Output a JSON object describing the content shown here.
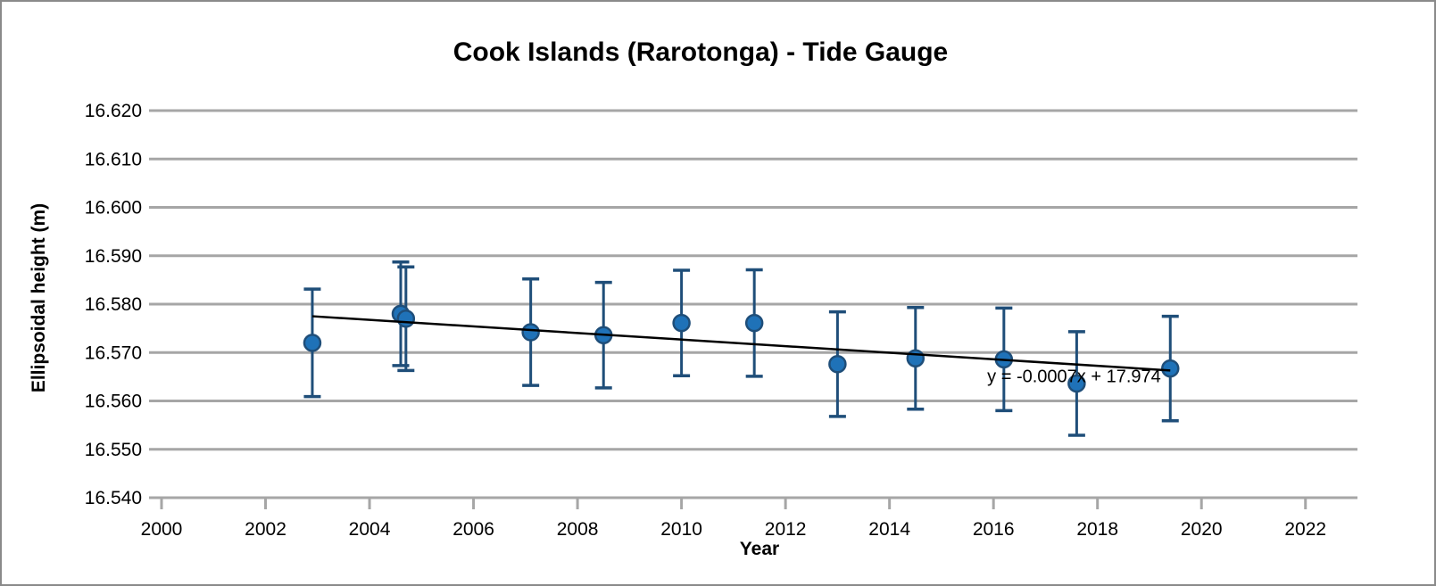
{
  "chart_data": {
    "type": "scatter",
    "title": "Cook Islands (Rarotonga) - Tide Gauge",
    "xlabel": "Year",
    "ylabel": "Ellipsoidal height (m)",
    "xlim": [
      2000,
      2023
    ],
    "ylim": [
      16.54,
      16.62
    ],
    "x_ticks": [
      2000,
      2002,
      2004,
      2006,
      2008,
      2010,
      2012,
      2014,
      2016,
      2018,
      2020,
      2022
    ],
    "y_ticks": [
      16.54,
      16.55,
      16.56,
      16.57,
      16.58,
      16.59,
      16.6,
      16.61,
      16.62
    ],
    "y_tick_decimals": 3,
    "grid": "horizontal",
    "legend": "none",
    "colors": {
      "marker_fill": "#1F72B8",
      "marker_border": "#1F4E79",
      "error_bar": "#1F4E79",
      "gridline": "#A6A6A6",
      "axis": "#A6A6A6",
      "trendline": "#000000",
      "text": "#000000"
    },
    "series": [
      {
        "points": [
          {
            "x": 2002.9,
            "y": 16.572,
            "err": 0.0111
          },
          {
            "x": 2004.6,
            "y": 16.578,
            "err": 0.0107
          },
          {
            "x": 2004.7,
            "y": 16.577,
            "err": 0.0107
          },
          {
            "x": 2007.1,
            "y": 16.5742,
            "err": 0.011
          },
          {
            "x": 2008.5,
            "y": 16.5736,
            "err": 0.0109
          },
          {
            "x": 2010.0,
            "y": 16.5761,
            "err": 0.0109
          },
          {
            "x": 2011.4,
            "y": 16.5761,
            "err": 0.011
          },
          {
            "x": 2013.0,
            "y": 16.5676,
            "err": 0.0108
          },
          {
            "x": 2014.5,
            "y": 16.5688,
            "err": 0.0105
          },
          {
            "x": 2016.2,
            "y": 16.5686,
            "err": 0.0106
          },
          {
            "x": 2017.6,
            "y": 16.5636,
            "err": 0.0107
          },
          {
            "x": 2019.4,
            "y": 16.5667,
            "err": 0.0108
          }
        ]
      }
    ],
    "trendline": {
      "x1": 2002.9,
      "y1": 16.5775,
      "x2": 2019.4,
      "y2": 16.5663,
      "equation": "y = -0.0007x + 17.974",
      "equation_pos": {
        "x": 2017.55,
        "y": 16.5652
      }
    }
  }
}
